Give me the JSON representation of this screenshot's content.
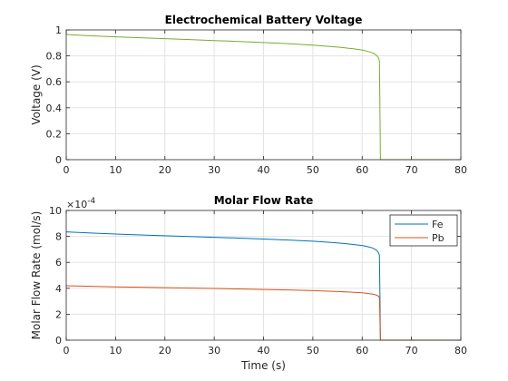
{
  "chart_data": [
    {
      "type": "line",
      "title": "Electrochemical Battery Voltage",
      "xlabel": "",
      "ylabel": "Voltage (V)",
      "xlim": [
        0,
        80
      ],
      "ylim": [
        0,
        1
      ],
      "xticks": [
        "0",
        "10",
        "20",
        "30",
        "40",
        "50",
        "60",
        "70",
        "80"
      ],
      "yticks": [
        "0",
        "0.2",
        "0.4",
        "0.6",
        "0.8",
        "1"
      ],
      "grid": true,
      "series": [
        {
          "color": "#77AC30",
          "x": [
            0,
            5,
            10,
            15,
            20,
            25,
            30,
            35,
            40,
            45,
            50,
            55,
            58,
            60,
            61,
            62,
            62.5,
            63,
            63.3,
            63.5,
            63.6,
            63.7,
            80
          ],
          "y": [
            0.965,
            0.955,
            0.947,
            0.94,
            0.933,
            0.926,
            0.918,
            0.911,
            0.903,
            0.894,
            0.883,
            0.868,
            0.856,
            0.845,
            0.836,
            0.825,
            0.815,
            0.8,
            0.785,
            0.76,
            0.4,
            0.0,
            0.0
          ]
        }
      ]
    },
    {
      "type": "line",
      "title": "Molar Flow Rate",
      "xlabel": "Time (s)",
      "ylabel": "Molar Flow Rate (mol/s)",
      "xlim": [
        0,
        80
      ],
      "ylim": [
        0,
        10
      ],
      "xticks": [
        "0",
        "10",
        "20",
        "30",
        "40",
        "50",
        "60",
        "70",
        "80"
      ],
      "yticks": [
        "0",
        "2",
        "4",
        "6",
        "8",
        "10"
      ],
      "y_exponent_base": "×10",
      "y_exponent": "-4",
      "grid": true,
      "legend": "top-right",
      "series": [
        {
          "name": "Fe",
          "color": "#0072BD",
          "x": [
            0,
            5,
            10,
            15,
            20,
            25,
            30,
            35,
            40,
            45,
            50,
            55,
            58,
            60,
            61,
            62,
            62.5,
            63,
            63.3,
            63.5,
            63.6,
            63.7,
            80
          ],
          "y": [
            8.35,
            8.26,
            8.18,
            8.11,
            8.05,
            7.99,
            7.93,
            7.87,
            7.8,
            7.72,
            7.63,
            7.5,
            7.39,
            7.3,
            7.22,
            7.12,
            7.03,
            6.9,
            6.75,
            6.55,
            3.5,
            0.0,
            0.0
          ]
        },
        {
          "name": "Pb",
          "color": "#D95319",
          "x": [
            0,
            5,
            10,
            15,
            20,
            25,
            30,
            35,
            40,
            45,
            50,
            55,
            58,
            60,
            61,
            62,
            62.5,
            63,
            63.3,
            63.5,
            63.6,
            63.7,
            80
          ],
          "y": [
            4.2,
            4.15,
            4.11,
            4.08,
            4.05,
            4.02,
            3.99,
            3.95,
            3.91,
            3.87,
            3.82,
            3.75,
            3.7,
            3.65,
            3.61,
            3.56,
            3.52,
            3.46,
            3.39,
            3.3,
            1.7,
            0.0,
            0.0
          ]
        }
      ]
    }
  ]
}
